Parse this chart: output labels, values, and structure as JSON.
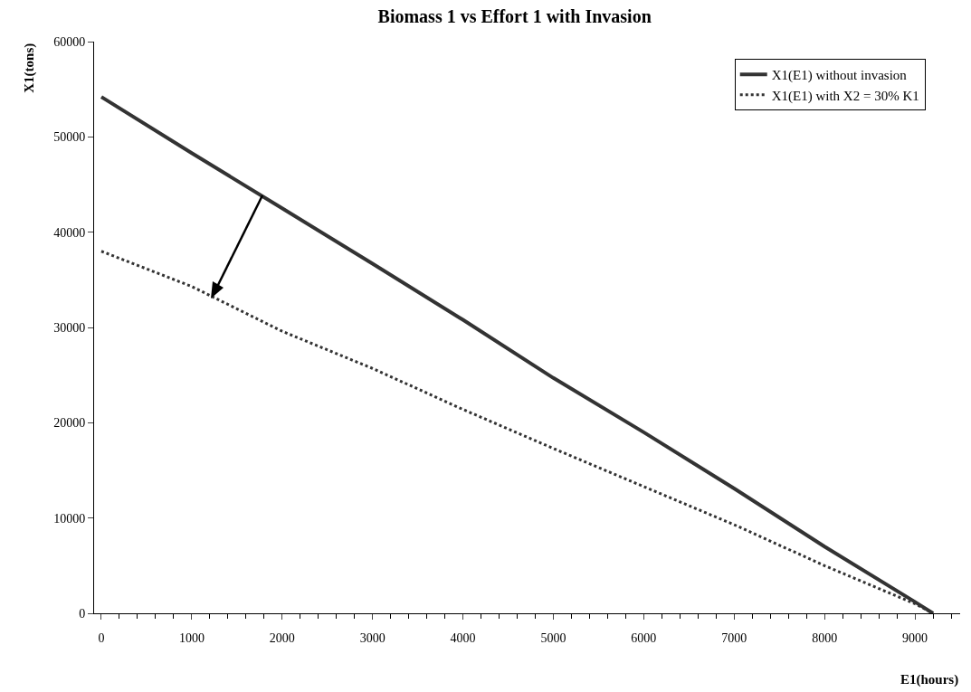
{
  "chart_data": {
    "type": "line",
    "title": "Biomass 1 vs Effort 1 with Invasion",
    "xlabel": "E1(hours)",
    "ylabel": "X1(tons)",
    "x": [
      0,
      1000,
      2000,
      3000,
      4000,
      5000,
      6000,
      7000,
      8000,
      9000,
      9200
    ],
    "series": [
      {
        "name": "X1(E1) without invasion",
        "color": "#333333",
        "line_style": "solid",
        "values": [
          54200,
          48300,
          42500,
          36700,
          30800,
          24700,
          19000,
          13100,
          7000,
          1200,
          0
        ]
      },
      {
        "name": "X1(E1) with X2 = 30% K1",
        "color": "#333333",
        "line_style": "dotted",
        "values": [
          38000,
          34300,
          29600,
          25700,
          21400,
          17300,
          13300,
          9300,
          5000,
          1000,
          0
        ]
      }
    ],
    "xlim": [
      -80,
      9500
    ],
    "xticks": [
      0,
      1000,
      2000,
      3000,
      4000,
      5000,
      6000,
      7000,
      8000,
      9000
    ],
    "ylim": [
      0,
      60000
    ],
    "yticks": [
      0,
      10000,
      20000,
      30000,
      40000,
      50000,
      60000
    ],
    "grid": false,
    "legend": "top right",
    "marker": "none"
  }
}
